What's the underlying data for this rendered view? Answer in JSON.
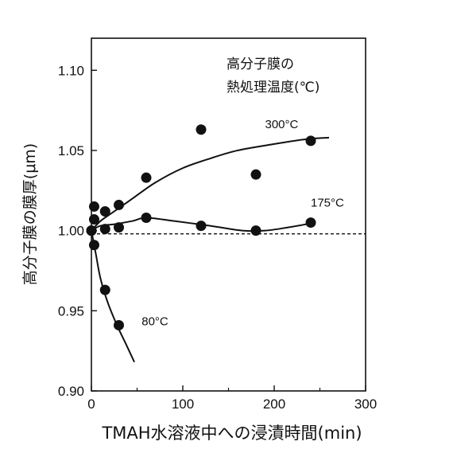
{
  "chart_data": {
    "type": "scatter",
    "title": "",
    "xlabel": "TMAH水溶液中への浸漬時間(min)",
    "ylabel": "高分子膜の膜厚(μm)",
    "xlim": [
      0,
      300
    ],
    "ylim": [
      0.9,
      1.12
    ],
    "xticks": [
      0,
      100,
      200,
      300
    ],
    "yticks": [
      0.9,
      0.95,
      1.0,
      1.05,
      1.1
    ],
    "xtick_labels": [
      "0",
      "100",
      "200",
      "300"
    ],
    "ytick_labels": [
      "0.90",
      "0.95",
      "1.00",
      "1.05",
      "1.10"
    ],
    "legend_title_lines": [
      "高分子膜の",
      "熱処理温度(℃)"
    ],
    "reference_line": {
      "y": 0.998,
      "style": "dashed"
    },
    "grid": false,
    "series": [
      {
        "name": "300°C",
        "points": [
          {
            "x": 0,
            "y": 1.0
          },
          {
            "x": 3,
            "y": 1.015
          },
          {
            "x": 15,
            "y": 1.012
          },
          {
            "x": 30,
            "y": 1.016
          },
          {
            "x": 60,
            "y": 1.033
          },
          {
            "x": 120,
            "y": 1.063
          },
          {
            "x": 180,
            "y": 1.035
          },
          {
            "x": 240,
            "y": 1.056
          }
        ],
        "curve": [
          {
            "x": 0,
            "y": 1.0
          },
          {
            "x": 10,
            "y": 1.006
          },
          {
            "x": 25,
            "y": 1.012
          },
          {
            "x": 45,
            "y": 1.02
          },
          {
            "x": 70,
            "y": 1.03
          },
          {
            "x": 100,
            "y": 1.039
          },
          {
            "x": 130,
            "y": 1.045
          },
          {
            "x": 160,
            "y": 1.05
          },
          {
            "x": 200,
            "y": 1.054
          },
          {
            "x": 235,
            "y": 1.057
          },
          {
            "x": 260,
            "y": 1.058
          }
        ]
      },
      {
        "name": "175°C",
        "points": [
          {
            "x": 0,
            "y": 1.0
          },
          {
            "x": 3,
            "y": 1.007
          },
          {
            "x": 15,
            "y": 1.001
          },
          {
            "x": 30,
            "y": 1.002
          },
          {
            "x": 60,
            "y": 1.008
          },
          {
            "x": 120,
            "y": 1.003
          },
          {
            "x": 180,
            "y": 1.0
          },
          {
            "x": 240,
            "y": 1.005
          }
        ],
        "curve": [
          {
            "x": 0,
            "y": 1.0
          },
          {
            "x": 10,
            "y": 1.003
          },
          {
            "x": 25,
            "y": 1.004
          },
          {
            "x": 45,
            "y": 1.006
          },
          {
            "x": 60,
            "y": 1.008
          },
          {
            "x": 90,
            "y": 1.006
          },
          {
            "x": 130,
            "y": 1.003
          },
          {
            "x": 165,
            "y": 1.0
          },
          {
            "x": 190,
            "y": 1.0
          },
          {
            "x": 215,
            "y": 1.002
          },
          {
            "x": 245,
            "y": 1.005
          }
        ]
      },
      {
        "name": "80°C",
        "points": [
          {
            "x": 0,
            "y": 1.0
          },
          {
            "x": 3,
            "y": 0.991
          },
          {
            "x": 15,
            "y": 0.963
          },
          {
            "x": 30,
            "y": 0.941
          }
        ],
        "curve": [
          {
            "x": 0,
            "y": 1.0
          },
          {
            "x": 5,
            "y": 0.985
          },
          {
            "x": 10,
            "y": 0.97
          },
          {
            "x": 18,
            "y": 0.955
          },
          {
            "x": 28,
            "y": 0.941
          },
          {
            "x": 38,
            "y": 0.929
          },
          {
            "x": 47,
            "y": 0.918
          }
        ]
      }
    ],
    "series_label_positions": [
      {
        "name": "300°C",
        "x": 190,
        "y": 1.064
      },
      {
        "name": "175°C",
        "x": 240,
        "y": 1.015
      },
      {
        "name": "80°C",
        "x": 55,
        "y": 0.941
      }
    ]
  }
}
